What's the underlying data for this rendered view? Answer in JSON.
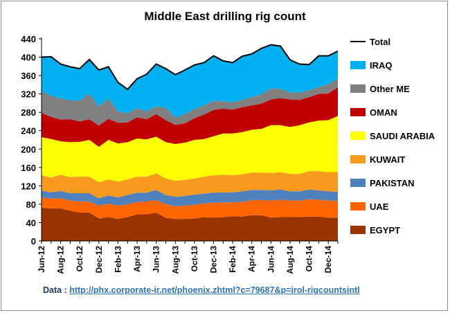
{
  "chart_data": {
    "type": "area",
    "title": "Middle East drilling rig count",
    "xlabel": "",
    "ylabel": "",
    "ylim": [
      0,
      440
    ],
    "yticks": [
      0,
      40,
      80,
      120,
      160,
      200,
      240,
      280,
      320,
      360,
      400,
      440
    ],
    "grid": false,
    "legend_position": "right",
    "categories": [
      "Jun-12",
      "Jul-12",
      "Aug-12",
      "Sep-12",
      "Oct-12",
      "Nov-12",
      "Dec-12",
      "Jan-13",
      "Feb-13",
      "Mar-13",
      "Apr-13",
      "May-13",
      "Jun-13",
      "Jul-13",
      "Aug-13",
      "Sep-13",
      "Oct-13",
      "Nov-13",
      "Dec-13",
      "Jan-14",
      "Feb-14",
      "Mar-14",
      "Apr-14",
      "May-14",
      "Jun-14",
      "Jul-14",
      "Aug-14",
      "Sep-14",
      "Oct-14",
      "Nov-14",
      "Dec-14",
      "Jan-15"
    ],
    "xtick_labels": [
      "Jun-12",
      "Aug-12",
      "Oct-12",
      "Dec-12",
      "Feb-13",
      "Apr-13",
      "Jun-13",
      "Aug-13",
      "Oct-13",
      "Dec-13",
      "Feb-14",
      "Apr-14",
      "Jun-14",
      "Aug-14",
      "Oct-14",
      "Dec-14"
    ],
    "series": [
      {
        "name": "EGYPT",
        "color": "#993300",
        "values": [
          72,
          71,
          71,
          66,
          62,
          62,
          49,
          52,
          48,
          52,
          58,
          58,
          62,
          50,
          48,
          48,
          49,
          52,
          51,
          52,
          54,
          53,
          56,
          56,
          51,
          52,
          52,
          52,
          53,
          53,
          51,
          51
        ]
      },
      {
        "name": "UAE",
        "color": "#ff6600",
        "values": [
          23,
          21,
          22,
          22,
          24,
          24,
          28,
          29,
          29,
          28,
          27,
          28,
          27,
          30,
          28,
          29,
          30,
          30,
          32,
          32,
          30,
          32,
          33,
          33,
          37,
          38,
          36,
          36,
          38,
          37,
          37,
          36
        ]
      },
      {
        "name": "PAKISTAN",
        "color": "#4f81bd",
        "values": [
          15,
          14,
          16,
          16,
          18,
          18,
          16,
          18,
          18,
          20,
          20,
          19,
          22,
          20,
          20,
          21,
          22,
          21,
          22,
          22,
          22,
          23,
          22,
          22,
          22,
          22,
          20,
          20,
          21,
          20,
          20,
          20
        ]
      },
      {
        "name": "KUWAIT",
        "color": "#f79a1e",
        "values": [
          33,
          32,
          35,
          35,
          36,
          36,
          35,
          35,
          34,
          34,
          35,
          35,
          36,
          36,
          35,
          35,
          35,
          37,
          38,
          38,
          37,
          37,
          38,
          38,
          38,
          38,
          38,
          38,
          40,
          42,
          42,
          43
        ]
      },
      {
        "name": "SAUDI ARABIA",
        "color": "#ffff00",
        "values": [
          83,
          84,
          73,
          76,
          76,
          80,
          77,
          86,
          83,
          81,
          83,
          81,
          80,
          79,
          80,
          81,
          84,
          82,
          85,
          90,
          91,
          92,
          93,
          95,
          104,
          102,
          102,
          106,
          106,
          110,
          113,
          122
        ]
      },
      {
        "name": "OMAN",
        "color": "#c00000",
        "values": [
          53,
          48,
          47,
          50,
          44,
          45,
          46,
          46,
          45,
          43,
          46,
          44,
          49,
          48,
          42,
          42,
          47,
          53,
          57,
          54,
          52,
          54,
          53,
          55,
          56,
          59,
          60,
          55,
          55,
          58,
          58,
          62
        ]
      },
      {
        "name": "Other ME",
        "color": "#808080",
        "values": [
          47,
          46,
          46,
          41,
          45,
          56,
          42,
          44,
          25,
          20,
          20,
          17,
          17,
          27,
          15,
          20,
          20,
          20,
          20,
          16,
          16,
          16,
          18,
          20,
          24,
          20,
          15,
          16,
          15,
          15,
          20,
          20
        ]
      },
      {
        "name": "IRAQ",
        "color": "#00b0f0",
        "values": [
          74,
          85,
          75,
          73,
          70,
          74,
          79,
          69,
          63,
          52,
          64,
          81,
          92,
          85,
          94,
          96,
          96,
          93,
          98,
          88,
          86,
          95,
          94,
          100,
          95,
          93,
          71,
          62,
          56,
          68,
          62,
          59
        ]
      }
    ],
    "total": {
      "name": "Total",
      "color": "#000000",
      "values": [
        400,
        401,
        385,
        379,
        375,
        395,
        372,
        379,
        345,
        330,
        353,
        363,
        385,
        375,
        362,
        372,
        383,
        388,
        403,
        392,
        388,
        402,
        407,
        419,
        427,
        424,
        394,
        385,
        384,
        403,
        403,
        413
      ]
    }
  },
  "source": {
    "label": "Data :",
    "link_text": "http://phx.corporate-ir.net/phoenix.zhtml?c=79687&p=irol-rigcountsintl"
  }
}
